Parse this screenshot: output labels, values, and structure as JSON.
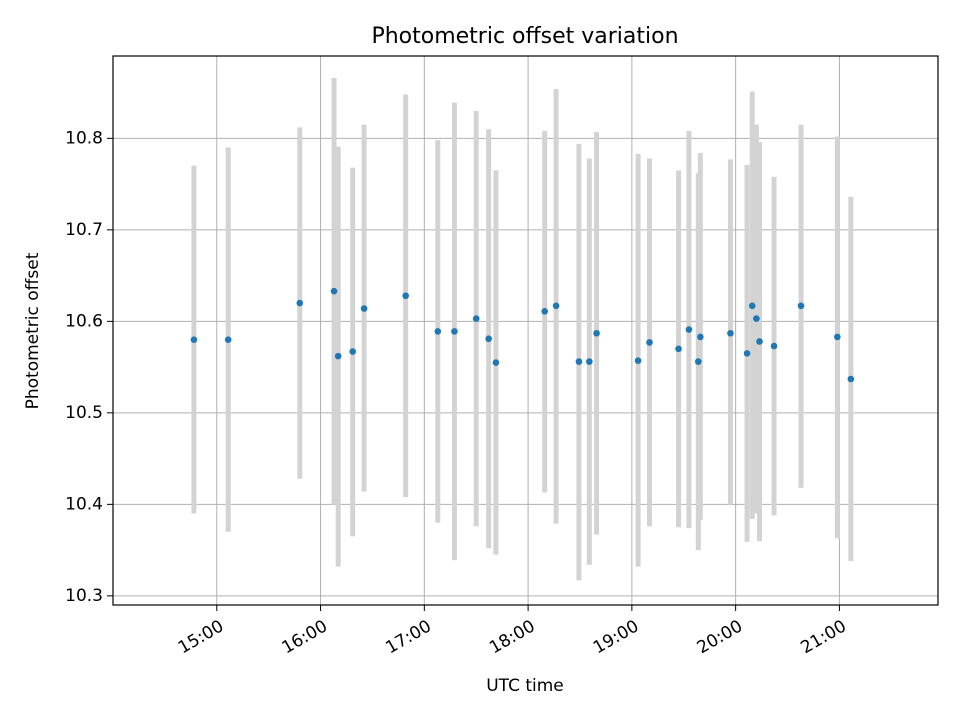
{
  "chart_data": {
    "type": "scatter",
    "title": "Photometric offset variation",
    "xlabel": "UTC time",
    "ylabel": "Photometric offset",
    "grid": true,
    "xlim_hours": [
      14.0,
      21.95
    ],
    "ylim": [
      10.29,
      10.89
    ],
    "x_ticks": [
      {
        "label": "15:00",
        "hour": 15
      },
      {
        "label": "16:00",
        "hour": 16
      },
      {
        "label": "17:00",
        "hour": 17
      },
      {
        "label": "18:00",
        "hour": 18
      },
      {
        "label": "19:00",
        "hour": 19
      },
      {
        "label": "20:00",
        "hour": 20
      },
      {
        "label": "21:00",
        "hour": 21
      }
    ],
    "y_ticks": [
      {
        "label": "10.3",
        "value": 10.3
      },
      {
        "label": "10.4",
        "value": 10.4
      },
      {
        "label": "10.5",
        "value": 10.5
      },
      {
        "label": "10.6",
        "value": 10.6
      },
      {
        "label": "10.7",
        "value": 10.7
      },
      {
        "label": "10.8",
        "value": 10.8
      }
    ],
    "marker_color": "#1f77b4",
    "errorbar_color": "#d3d3d3",
    "points": [
      {
        "hour": 14.78,
        "y": 10.58,
        "lo": 10.39,
        "hi": 10.77
      },
      {
        "hour": 15.11,
        "y": 10.58,
        "lo": 10.37,
        "hi": 10.79
      },
      {
        "hour": 15.8,
        "y": 10.62,
        "lo": 10.428,
        "hi": 10.812
      },
      {
        "hour": 16.13,
        "y": 10.633,
        "lo": 10.4,
        "hi": 10.866
      },
      {
        "hour": 16.17,
        "y": 10.562,
        "lo": 10.332,
        "hi": 10.791
      },
      {
        "hour": 16.31,
        "y": 10.567,
        "lo": 10.365,
        "hi": 10.768
      },
      {
        "hour": 16.42,
        "y": 10.614,
        "lo": 10.414,
        "hi": 10.815
      },
      {
        "hour": 16.82,
        "y": 10.628,
        "lo": 10.408,
        "hi": 10.848
      },
      {
        "hour": 17.13,
        "y": 10.589,
        "lo": 10.38,
        "hi": 10.798
      },
      {
        "hour": 17.29,
        "y": 10.589,
        "lo": 10.339,
        "hi": 10.839
      },
      {
        "hour": 17.5,
        "y": 10.603,
        "lo": 10.376,
        "hi": 10.83
      },
      {
        "hour": 17.62,
        "y": 10.581,
        "lo": 10.352,
        "hi": 10.81
      },
      {
        "hour": 17.69,
        "y": 10.555,
        "lo": 10.345,
        "hi": 10.765
      },
      {
        "hour": 18.16,
        "y": 10.611,
        "lo": 10.413,
        "hi": 10.808
      },
      {
        "hour": 18.27,
        "y": 10.617,
        "lo": 10.379,
        "hi": 10.854
      },
      {
        "hour": 18.49,
        "y": 10.556,
        "lo": 10.317,
        "hi": 10.794
      },
      {
        "hour": 18.59,
        "y": 10.556,
        "lo": 10.334,
        "hi": 10.778
      },
      {
        "hour": 18.66,
        "y": 10.587,
        "lo": 10.367,
        "hi": 10.807
      },
      {
        "hour": 19.06,
        "y": 10.557,
        "lo": 10.332,
        "hi": 10.783
      },
      {
        "hour": 19.17,
        "y": 10.577,
        "lo": 10.376,
        "hi": 10.778
      },
      {
        "hour": 19.45,
        "y": 10.57,
        "lo": 10.375,
        "hi": 10.765
      },
      {
        "hour": 19.55,
        "y": 10.591,
        "lo": 10.374,
        "hi": 10.808
      },
      {
        "hour": 19.64,
        "y": 10.556,
        "lo": 10.35,
        "hi": 10.762
      },
      {
        "hour": 19.66,
        "y": 10.583,
        "lo": 10.383,
        "hi": 10.784
      },
      {
        "hour": 19.95,
        "y": 10.587,
        "lo": 10.4,
        "hi": 10.777
      },
      {
        "hour": 20.11,
        "y": 10.565,
        "lo": 10.359,
        "hi": 10.771
      },
      {
        "hour": 20.16,
        "y": 10.617,
        "lo": 10.384,
        "hi": 10.851
      },
      {
        "hour": 20.2,
        "y": 10.603,
        "lo": 10.39,
        "hi": 10.815
      },
      {
        "hour": 20.23,
        "y": 10.578,
        "lo": 10.36,
        "hi": 10.796
      },
      {
        "hour": 20.37,
        "y": 10.573,
        "lo": 10.388,
        "hi": 10.758
      },
      {
        "hour": 20.63,
        "y": 10.617,
        "lo": 10.418,
        "hi": 10.815
      },
      {
        "hour": 20.98,
        "y": 10.583,
        "lo": 10.363,
        "hi": 10.802
      },
      {
        "hour": 21.11,
        "y": 10.537,
        "lo": 10.338,
        "hi": 10.736
      }
    ]
  }
}
